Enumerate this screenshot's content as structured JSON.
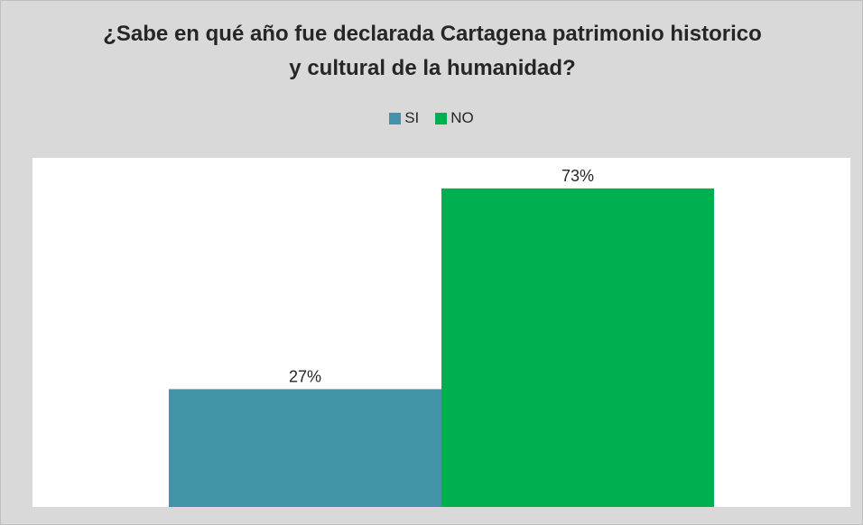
{
  "chart_data": {
    "type": "bar",
    "title": "¿Sabe en qué año fue declarada Cartagena patrimonio historico y cultural de la humanidad?",
    "categories": [
      null
    ],
    "series": [
      {
        "name": "SI",
        "color": "#4393a8",
        "values": [
          27
        ],
        "value_labels": [
          "27%"
        ]
      },
      {
        "name": "NO",
        "color": "#00b050",
        "values": [
          73
        ],
        "value_labels": [
          "73%"
        ]
      }
    ],
    "ylim": [
      0,
      80
    ]
  }
}
